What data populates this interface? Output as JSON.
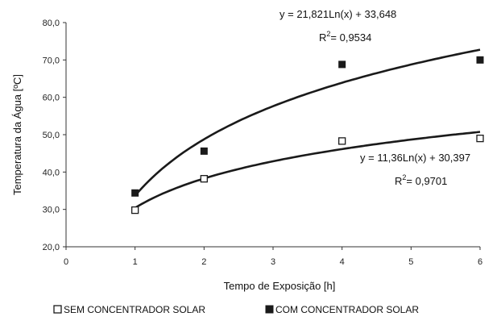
{
  "chart_data": {
    "type": "scatter",
    "xlabel": "Tempo de Exposição [h]",
    "ylabel": "Temperatura da Água [ºC]",
    "xlim": [
      0,
      6
    ],
    "ylim": [
      20,
      80
    ],
    "x_ticks": [
      "0",
      "1",
      "2",
      "3",
      "4",
      "5",
      "6"
    ],
    "y_ticks": [
      "20,0",
      "30,0",
      "40,0",
      "50,0",
      "60,0",
      "70,0",
      "80,0"
    ],
    "grid": false,
    "legend_position": "bottom",
    "series": [
      {
        "name": "SEM CONCENTRADOR SOLAR",
        "marker": "open-square",
        "x": [
          1,
          2,
          4,
          6
        ],
        "y": [
          29.8,
          38.2,
          48.3,
          49.0
        ],
        "trendline": {
          "a": 11.36,
          "b": 30.397
        },
        "equation": "y = 11,36Ln(x) + 30,397",
        "r2_label": "R",
        "r2_value": "= 0,9701"
      },
      {
        "name": "COM CONCENTRADOR SOLAR",
        "marker": "filled-square",
        "x": [
          1,
          2,
          4,
          6
        ],
        "y": [
          34.4,
          45.6,
          68.8,
          70.0
        ],
        "trendline": {
          "a": 21.821,
          "b": 33.648
        },
        "equation": "y = 21,821Ln(x) + 33,648",
        "r2_label": "R",
        "r2_value": "= 0,9534"
      }
    ],
    "colors": {
      "line": "#1a1a1a",
      "marker": "#1a1a1a",
      "axis": "#333333"
    }
  }
}
